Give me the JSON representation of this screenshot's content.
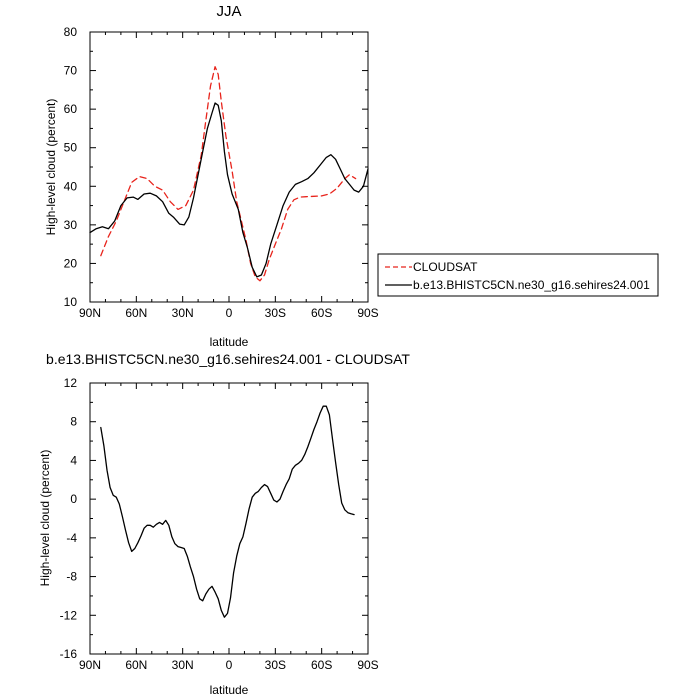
{
  "chart_data": [
    {
      "type": "line",
      "title": "JJA",
      "xlabel": "latitude",
      "ylabel": "High-level cloud (percent)",
      "xlim": [
        90,
        -90
      ],
      "ylim": [
        10,
        80
      ],
      "x_ticks": [
        90,
        60,
        30,
        0,
        -30,
        -60,
        -90
      ],
      "x_tick_labels": [
        "90N",
        "60N",
        "30N",
        "0",
        "30S",
        "60S",
        "90S"
      ],
      "y_ticks": [
        10,
        20,
        30,
        40,
        50,
        60,
        70,
        80
      ],
      "y_tick_labels": [
        "10",
        "20",
        "30",
        "40",
        "50",
        "60",
        "70",
        "80"
      ],
      "legend_position": "outside-right",
      "series": [
        {
          "name": "CLOUDSAT",
          "color": "#e8241c",
          "dash": true,
          "points": [
            [
              83,
              22
            ],
            [
              78,
              27
            ],
            [
              73,
              31
            ],
            [
              68,
              36
            ],
            [
              63,
              41
            ],
            [
              58,
              42.5
            ],
            [
              53,
              42
            ],
            [
              48,
              40
            ],
            [
              43,
              39
            ],
            [
              38,
              36
            ],
            [
              33,
              34
            ],
            [
              28,
              35
            ],
            [
              23,
              39
            ],
            [
              18,
              48
            ],
            [
              15,
              57
            ],
            [
              12,
              66
            ],
            [
              9,
              71
            ],
            [
              7,
              69
            ],
            [
              5,
              62
            ],
            [
              2,
              53
            ],
            [
              -2,
              44
            ],
            [
              -5,
              36
            ],
            [
              -8,
              31
            ],
            [
              -11,
              26
            ],
            [
              -14,
              20
            ],
            [
              -17,
              16.5
            ],
            [
              -20,
              15.5
            ],
            [
              -23,
              17
            ],
            [
              -26,
              21
            ],
            [
              -30,
              25
            ],
            [
              -34,
              29
            ],
            [
              -38,
              34
            ],
            [
              -42,
              36.5
            ],
            [
              -46,
              37.2
            ],
            [
              -50,
              37.3
            ],
            [
              -55,
              37.4
            ],
            [
              -60,
              37.5
            ],
            [
              -65,
              38
            ],
            [
              -70,
              39.5
            ],
            [
              -75,
              42
            ],
            [
              -78,
              43
            ],
            [
              -82,
              42
            ]
          ]
        },
        {
          "name": "b.e13.BHISTC5CN.ne30_g16.sehires24.001",
          "color": "#000000",
          "dash": false,
          "points": [
            [
              90,
              28
            ],
            [
              86,
              29
            ],
            [
              82,
              29.5
            ],
            [
              78,
              29
            ],
            [
              74,
              31
            ],
            [
              70,
              35
            ],
            [
              66,
              37
            ],
            [
              62,
              37.2
            ],
            [
              59,
              36.6
            ],
            [
              55,
              38
            ],
            [
              51,
              38.2
            ],
            [
              47,
              37.5
            ],
            [
              43,
              36
            ],
            [
              39,
              33
            ],
            [
              36,
              32
            ],
            [
              32,
              30.2
            ],
            [
              29,
              30
            ],
            [
              26,
              32
            ],
            [
              23,
              37
            ],
            [
              20,
              43
            ],
            [
              17,
              49
            ],
            [
              14,
              55
            ],
            [
              11,
              59
            ],
            [
              9,
              61.6
            ],
            [
              7,
              61
            ],
            [
              5,
              57
            ],
            [
              3,
              49
            ],
            [
              1,
              43
            ],
            [
              -2,
              38
            ],
            [
              -6,
              34
            ],
            [
              -9,
              28
            ],
            [
              -12,
              24
            ],
            [
              -15,
              19
            ],
            [
              -18,
              16.5
            ],
            [
              -21,
              17
            ],
            [
              -24,
              20
            ],
            [
              -27,
              25
            ],
            [
              -31,
              30
            ],
            [
              -35,
              35
            ],
            [
              -39,
              38.5
            ],
            [
              -43,
              40.5
            ],
            [
              -47,
              41.2
            ],
            [
              -51,
              42
            ],
            [
              -55,
              43.5
            ],
            [
              -59,
              45.5
            ],
            [
              -63,
              47.5
            ],
            [
              -66,
              48.2
            ],
            [
              -69,
              47
            ],
            [
              -72,
              44.5
            ],
            [
              -75,
              42
            ],
            [
              -78,
              40.5
            ],
            [
              -81,
              39
            ],
            [
              -84,
              38.5
            ],
            [
              -87,
              40
            ],
            [
              -90,
              44.5
            ]
          ]
        }
      ]
    },
    {
      "type": "line",
      "title": "b.e13.BHISTC5CN.ne30_g16.sehires24.001 - CLOUDSAT",
      "xlabel": "latitude",
      "ylabel": "High-level cloud (percent)",
      "xlim": [
        90,
        -90
      ],
      "ylim": [
        -16,
        12
      ],
      "x_ticks": [
        90,
        60,
        30,
        0,
        -30,
        -60,
        -90
      ],
      "x_tick_labels": [
        "90N",
        "60N",
        "30N",
        "0",
        "30S",
        "60S",
        "90S"
      ],
      "y_ticks": [
        -16,
        -12,
        -8,
        -4,
        0,
        4,
        8,
        12
      ],
      "y_tick_labels": [
        "-16",
        "-12",
        "-8",
        "-4",
        "0",
        "4",
        "8",
        "12"
      ],
      "series": [
        {
          "color": "#000000",
          "dash": false,
          "points": [
            [
              83,
              7.4
            ],
            [
              81,
              5.5
            ],
            [
              79,
              3
            ],
            [
              77,
              1.2
            ],
            [
              75,
              0.4
            ],
            [
              73,
              0.2
            ],
            [
              71,
              -0.5
            ],
            [
              69,
              -1.8
            ],
            [
              67,
              -3.2
            ],
            [
              65,
              -4.5
            ],
            [
              63,
              -5.4
            ],
            [
              61,
              -5.1
            ],
            [
              59,
              -4.5
            ],
            [
              57,
              -3.8
            ],
            [
              55,
              -3.0
            ],
            [
              53,
              -2.7
            ],
            [
              51,
              -2.7
            ],
            [
              49,
              -2.9
            ],
            [
              47,
              -2.6
            ],
            [
              45,
              -2.4
            ],
            [
              43,
              -2.6
            ],
            [
              41,
              -2.2
            ],
            [
              39,
              -2.7
            ],
            [
              37,
              -3.9
            ],
            [
              35,
              -4.6
            ],
            [
              33,
              -4.9
            ],
            [
              31,
              -5.0
            ],
            [
              29,
              -5.1
            ],
            [
              27,
              -5.9
            ],
            [
              25,
              -7.0
            ],
            [
              23,
              -8.0
            ],
            [
              21,
              -9.3
            ],
            [
              19,
              -10.3
            ],
            [
              17,
              -10.5
            ],
            [
              15,
              -9.8
            ],
            [
              13,
              -9.3
            ],
            [
              11,
              -9.0
            ],
            [
              9,
              -9.6
            ],
            [
              7,
              -10.3
            ],
            [
              5,
              -11.5
            ],
            [
              3,
              -12.2
            ],
            [
              1,
              -11.8
            ],
            [
              -1,
              -10.2
            ],
            [
              -3,
              -7.6
            ],
            [
              -5,
              -5.9
            ],
            [
              -7,
              -4.6
            ],
            [
              -9,
              -3.9
            ],
            [
              -11,
              -2.5
            ],
            [
              -13,
              -1.0
            ],
            [
              -15,
              0.2
            ],
            [
              -17,
              0.6
            ],
            [
              -19,
              0.8
            ],
            [
              -21,
              1.2
            ],
            [
              -23,
              1.5
            ],
            [
              -25,
              1.3
            ],
            [
              -27,
              0.6
            ],
            [
              -29,
              -0.1
            ],
            [
              -31,
              -0.3
            ],
            [
              -33,
              0.0
            ],
            [
              -35,
              0.8
            ],
            [
              -37,
              1.5
            ],
            [
              -39,
              2.1
            ],
            [
              -41,
              3.1
            ],
            [
              -43,
              3.5
            ],
            [
              -45,
              3.7
            ],
            [
              -47,
              4.0
            ],
            [
              -49,
              4.6
            ],
            [
              -51,
              5.4
            ],
            [
              -53,
              6.3
            ],
            [
              -55,
              7.2
            ],
            [
              -57,
              8.0
            ],
            [
              -59,
              8.9
            ],
            [
              -61,
              9.6
            ],
            [
              -63,
              9.6
            ],
            [
              -65,
              8.7
            ],
            [
              -67,
              6.2
            ],
            [
              -69,
              3.8
            ],
            [
              -71,
              1.5
            ],
            [
              -73,
              -0.4
            ],
            [
              -75,
              -1.1
            ],
            [
              -77,
              -1.4
            ],
            [
              -79,
              -1.5
            ],
            [
              -81,
              -1.6
            ]
          ]
        }
      ]
    }
  ]
}
